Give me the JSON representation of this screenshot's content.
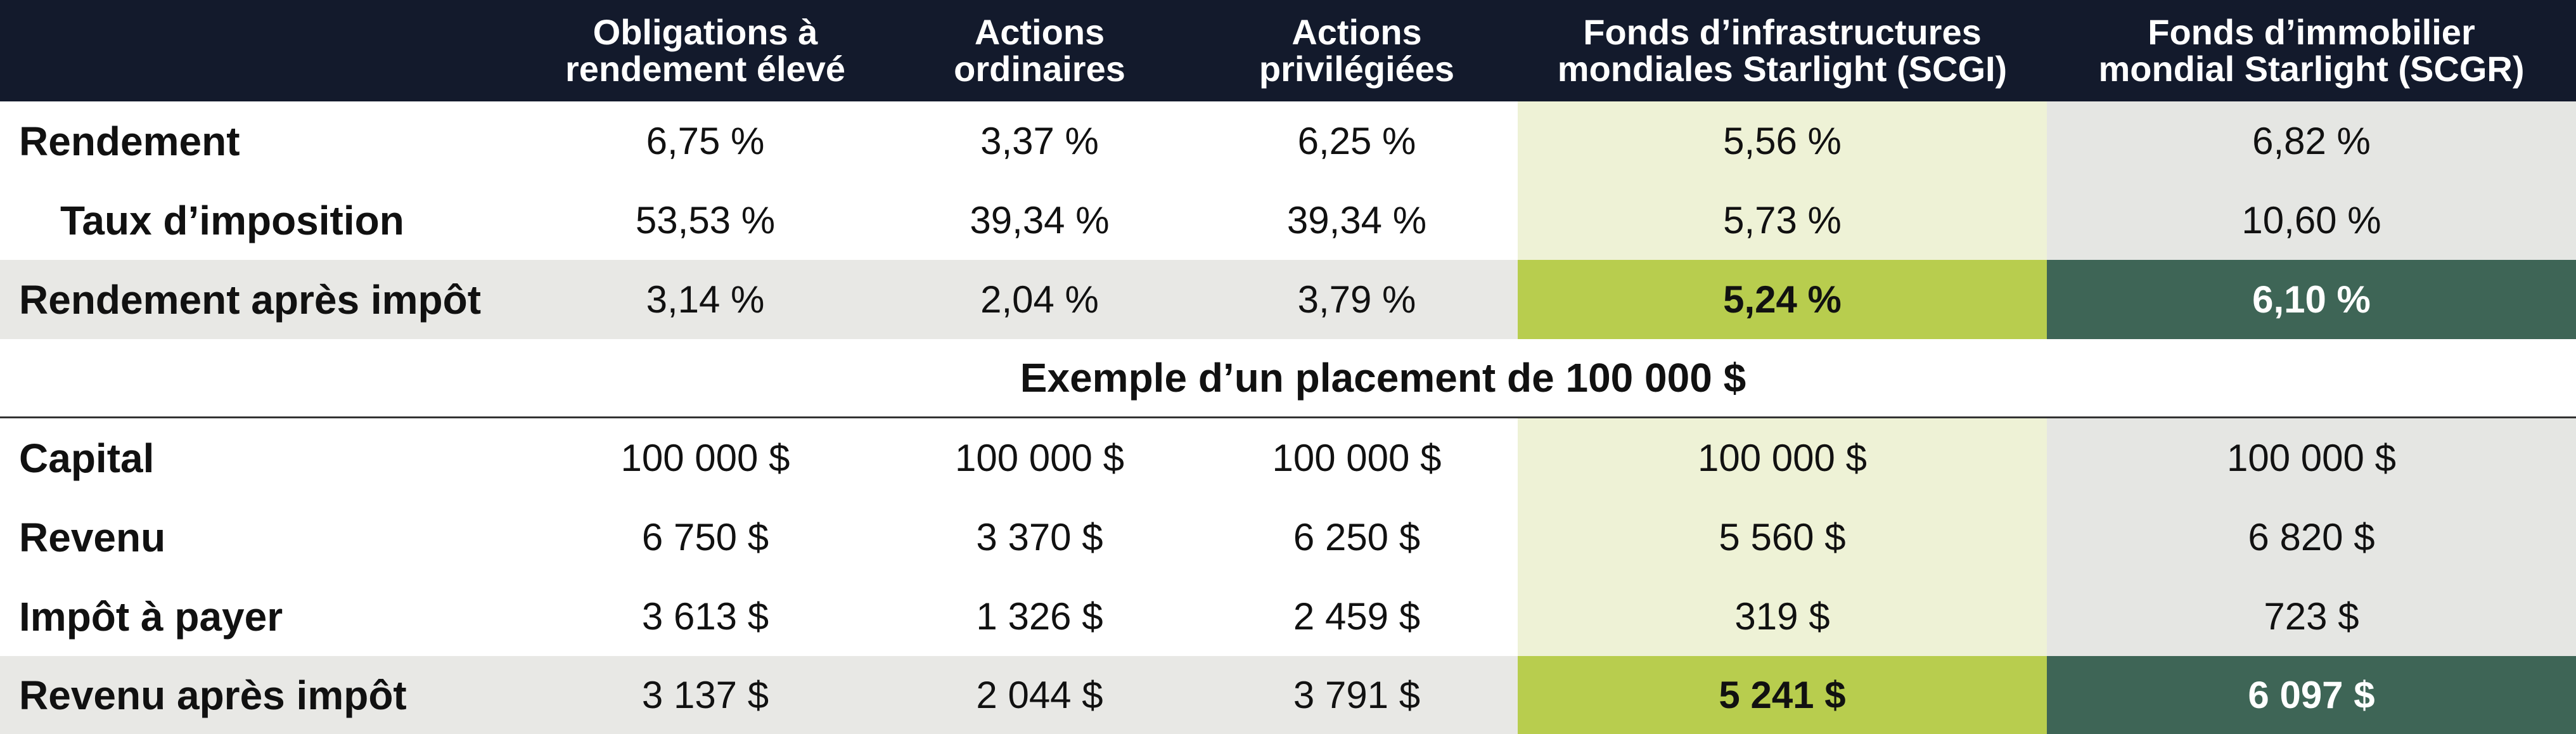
{
  "header": {
    "columns": [
      {
        "line1": "Obligations à",
        "line2": "rendement élevé"
      },
      {
        "line1": "Actions",
        "line2": "ordinaires"
      },
      {
        "line1": "Actions",
        "line2": "privilégiées"
      },
      {
        "line1": "Fonds d’infrastructures",
        "line2": "mondiales Starlight (SCGI)"
      },
      {
        "line1": "Fonds d’immobilier",
        "line2": "mondial Starlight (SCGR)"
      }
    ]
  },
  "rows_top": [
    {
      "label": "Rendement",
      "values": [
        "6,75 %",
        "3,37 %",
        "6,25 %",
        "5,56 %",
        "6,82 %"
      ]
    },
    {
      "label": "Taux d’imposition",
      "values": [
        "53,53 %",
        "39,34 %",
        "39,34 %",
        "5,73 %",
        "10,60 %"
      ]
    },
    {
      "label": "Rendement après impôt",
      "values": [
        "3,14 %",
        "2,04 %",
        "3,79 %",
        "5,24 %",
        "6,10 %"
      ]
    }
  ],
  "section_title": "Exemple d’un placement de 100 000 $",
  "rows_bottom": [
    {
      "label": "Capital",
      "values": [
        "100 000 $",
        "100 000 $",
        "100 000 $",
        "100 000 $",
        "100 000 $"
      ]
    },
    {
      "label": "Revenu",
      "values": [
        "6 750 $",
        "3 370 $",
        "6 250 $",
        "5 560 $",
        "6 820 $"
      ]
    },
    {
      "label": "Impôt à payer",
      "values": [
        "3 613 $",
        "1 326 $",
        "2 459 $",
        "319 $",
        "723 $"
      ]
    },
    {
      "label": "Revenu après impôt",
      "values": [
        "3 137 $",
        "2 044 $",
        "3 791 $",
        "5 241 $",
        "6 097 $"
      ]
    }
  ],
  "colors": {
    "header_bg": "#131a2c",
    "highlight_light_green": "#eef2d6",
    "highlight_light_gray": "#e5e6e3",
    "highlight_bright_green": "#b8cd4e",
    "highlight_dark_green": "#3e6556",
    "stripe_gray": "#e8e8e5"
  }
}
